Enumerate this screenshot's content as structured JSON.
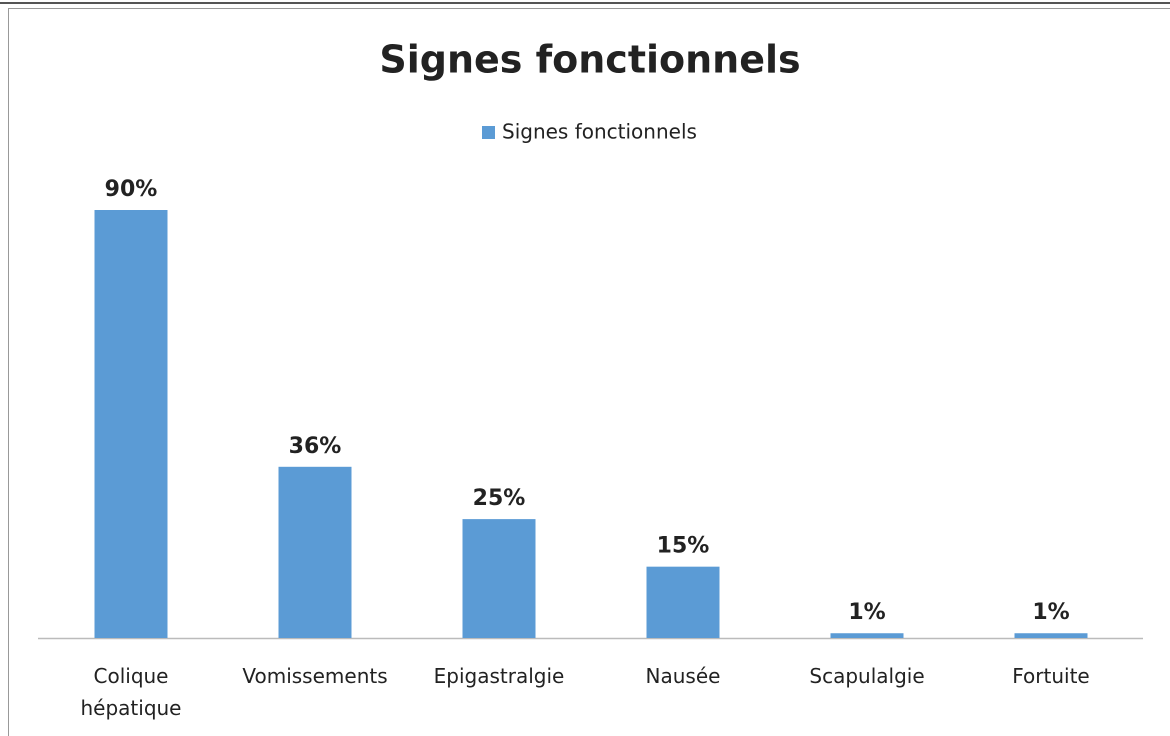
{
  "chart_data": {
    "type": "bar",
    "title": "Signes fonctionnels",
    "categories": [
      "Colique hépatique",
      "Vomissements",
      "Epigastralgie",
      "Nausée",
      "Scapulalgie",
      "Fortuite"
    ],
    "series": [
      {
        "name": "Signes fonctionnels",
        "color": "#5b9bd5",
        "values": [
          90,
          36,
          25,
          15,
          1,
          1
        ],
        "value_labels": [
          "90%",
          "36%",
          "25%",
          "15%",
          "1%",
          "1%"
        ]
      }
    ]
  }
}
